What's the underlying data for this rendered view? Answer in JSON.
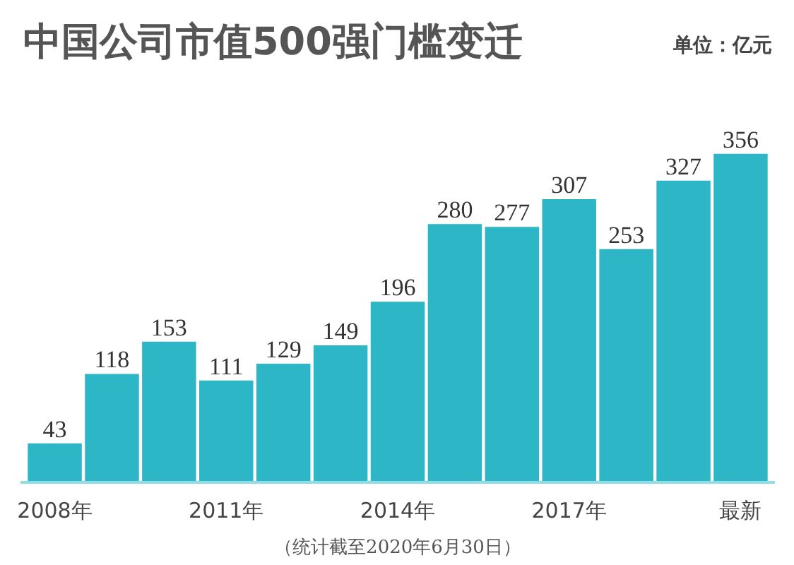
{
  "chart_data": {
    "type": "bar",
    "title": "中国公司市值500强门槛变迁",
    "subtitle": "单位：亿元",
    "categories": [
      "2008年",
      null,
      null,
      "2011年",
      null,
      null,
      "2014年",
      null,
      null,
      "2017年",
      null,
      null,
      "最新"
    ],
    "values": [
      43,
      118,
      153,
      111,
      129,
      149,
      196,
      280,
      277,
      307,
      253,
      327,
      356
    ],
    "color": "#2db7c6",
    "data_labels": true,
    "grid": false,
    "legend": false,
    "annotations": [
      "（统计截至2020年6月30日）"
    ]
  }
}
